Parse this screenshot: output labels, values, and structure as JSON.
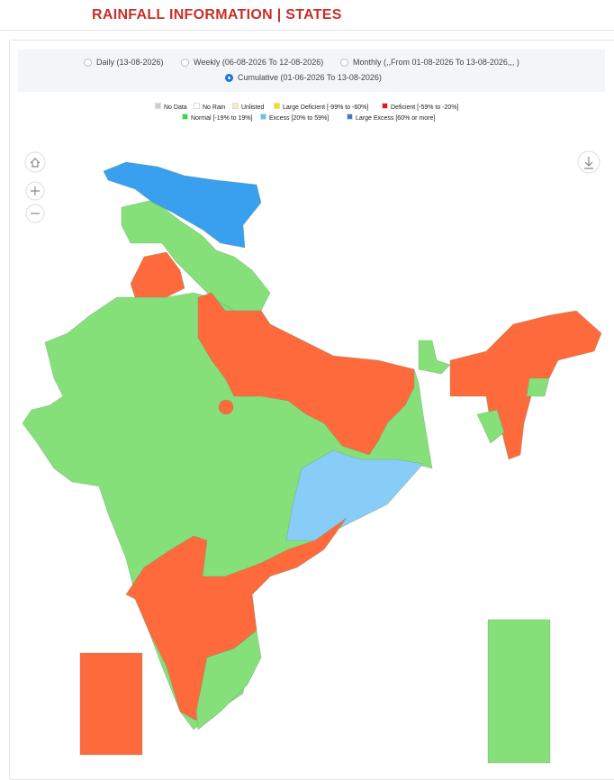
{
  "header": {
    "title": "RAINFALL INFORMATION | STATES"
  },
  "period_options": [
    {
      "label": "Daily (13-08-2026)",
      "selected": false
    },
    {
      "label": "Weekly (06-08-2026 To 12-08-2026)",
      "selected": false
    },
    {
      "label": "Monthly (,,From 01-08-2026 To 13-08-2026,,, )",
      "selected": false
    },
    {
      "label": "Cumulative (01-06-2026 To 13-08-2026)",
      "selected": true
    }
  ],
  "legend": [
    {
      "label": "No Data",
      "color": "#cccccc"
    },
    {
      "label": "No Rain",
      "color": "#ffffff"
    },
    {
      "label": "Unlisted",
      "color": "#fbe9c4"
    },
    {
      "label": "Large Deficient [-99% to -60%]",
      "color": "#f2e600"
    },
    {
      "label": "Deficient [-59% to -20%]",
      "color": "#e8161b"
    },
    {
      "label": "Normal [-19% to 19%]",
      "color": "#1ee83c"
    },
    {
      "label": "Excess [20% to 59%]",
      "color": "#55c6f0"
    },
    {
      "label": "Large Excess [60% or more]",
      "color": "#3a7fc4"
    }
  ]
}
